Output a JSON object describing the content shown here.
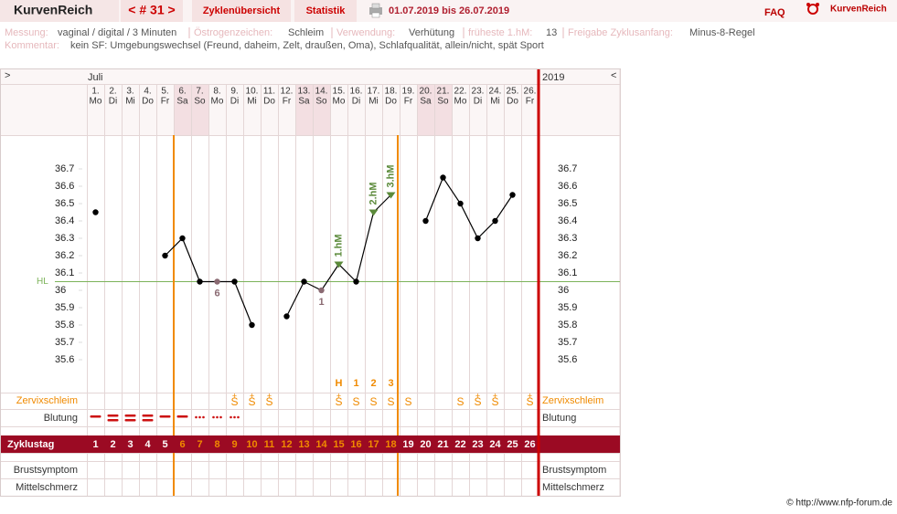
{
  "header": {
    "logo": "KurvenReich",
    "cycle_nav": "< # 31 >",
    "tabs": [
      "Zyklenübersicht",
      "Statistik"
    ],
    "date_range": "01.07.2019 bis 26.07.2019",
    "faq": "FAQ",
    "brand": "KurvenReich",
    "scroll_left": ">",
    "scroll_right": "<"
  },
  "info": [
    {
      "label": "Messung:",
      "value": "vaginal / digital / 3 Minuten"
    },
    {
      "label": "Östrogenzeichen:",
      "value": "Schleim"
    },
    {
      "label": "Verwendung:",
      "value": "Verhütung"
    },
    {
      "label": "früheste 1.hM:",
      "value": "13"
    },
    {
      "label": "Freigabe Zyklusanfang:",
      "value": "Minus-8-Regel"
    }
  ],
  "comment": {
    "label": "Kommentar:",
    "value": "kein SF: Umgebungswechsel (Freund, daheim, Zelt, draußen, Oma), Schlafqualität, allein/nicht, spät Sport"
  },
  "footer": "© http://www.nfp-forum.de",
  "chart_data": {
    "type": "line",
    "month": "Juli",
    "year": "2019",
    "days": [
      "1.",
      "2.",
      "3.",
      "4.",
      "5.",
      "6.",
      "7.",
      "8.",
      "9.",
      "10.",
      "11.",
      "12.",
      "13.",
      "14.",
      "15.",
      "16.",
      "17.",
      "18.",
      "19.",
      "20.",
      "21.",
      "22.",
      "23.",
      "24.",
      "25.",
      "26."
    ],
    "weekdays": [
      "Mo",
      "Di",
      "Mi",
      "Do",
      "Fr",
      "Sa",
      "So",
      "Mo",
      "Di",
      "Mi",
      "Do",
      "Fr",
      "Sa",
      "So",
      "Mo",
      "Di",
      "Mi",
      "Do",
      "Fr",
      "Sa",
      "So",
      "Mo",
      "Di",
      "Mi",
      "Do",
      "Fr"
    ],
    "weekend_days": [
      6,
      7,
      13,
      14,
      20,
      21
    ],
    "values": [
      36.45,
      null,
      null,
      null,
      36.2,
      36.3,
      36.05,
      36.05,
      36.05,
      35.8,
      null,
      35.85,
      36.05,
      36.0,
      36.15,
      36.05,
      36.45,
      36.55,
      null,
      36.4,
      36.65,
      36.5,
      36.3,
      36.4,
      36.55,
      null
    ],
    "color": "#000000",
    "excluded": [
      {
        "x": 8,
        "label": "6"
      },
      {
        "x": 14,
        "label": "1"
      }
    ],
    "excluded_color": "#8a6a72",
    "high_measurements": [
      {
        "x": 15,
        "label": "1.hM"
      },
      {
        "x": 17,
        "label": "2.hM"
      },
      {
        "x": 18,
        "label": "3.hM"
      }
    ],
    "hm_color": "#5b8a3a",
    "coverline": {
      "label": "HL",
      "value": 36.05,
      "color": "#7cb35a"
    },
    "ylim": [
      35.4,
      36.9
    ],
    "yticks": [
      35.6,
      35.7,
      35.8,
      35.9,
      36,
      36.1,
      36.2,
      36.3,
      36.4,
      36.5,
      36.6,
      36.7
    ],
    "fertile_start": 6,
    "fertile_end": 18,
    "fertile_color": "#f08a00",
    "peak_row": [
      null,
      null,
      null,
      null,
      null,
      null,
      null,
      null,
      null,
      null,
      null,
      null,
      null,
      null,
      "H",
      "1",
      "2",
      "3",
      null,
      null,
      null,
      null,
      null,
      null,
      null,
      null
    ],
    "cervix_top": [
      null,
      null,
      null,
      null,
      null,
      null,
      null,
      null,
      "+",
      "+",
      "+",
      null,
      null,
      null,
      "+",
      null,
      null,
      null,
      null,
      null,
      null,
      null,
      "+",
      "+",
      null,
      "+"
    ],
    "cervix": [
      null,
      null,
      null,
      null,
      null,
      null,
      null,
      null,
      "S",
      "S",
      "S",
      null,
      null,
      null,
      "S",
      "S",
      "S",
      "S",
      "S",
      null,
      null,
      "S",
      "S",
      "S",
      null,
      "S"
    ],
    "bleeding": [
      2,
      3,
      3,
      3,
      2,
      2,
      1,
      1,
      1,
      null,
      null,
      null,
      null,
      null,
      null,
      null,
      null,
      null,
      null,
      null,
      null,
      null,
      null,
      null,
      null,
      null
    ],
    "bleeding_color": "#cc1111",
    "cycle_days": [
      1,
      2,
      3,
      4,
      5,
      6,
      7,
      8,
      9,
      10,
      11,
      12,
      13,
      14,
      15,
      16,
      17,
      18,
      19,
      20,
      21,
      22,
      23,
      24,
      25,
      26
    ],
    "row_labels": {
      "cervix": "Zervixschleim",
      "bleeding": "Blutung",
      "cycle_day": "Zyklustag",
      "breast": "Brustsymptom",
      "mittelschmerz": "Mittelschmerz"
    }
  }
}
